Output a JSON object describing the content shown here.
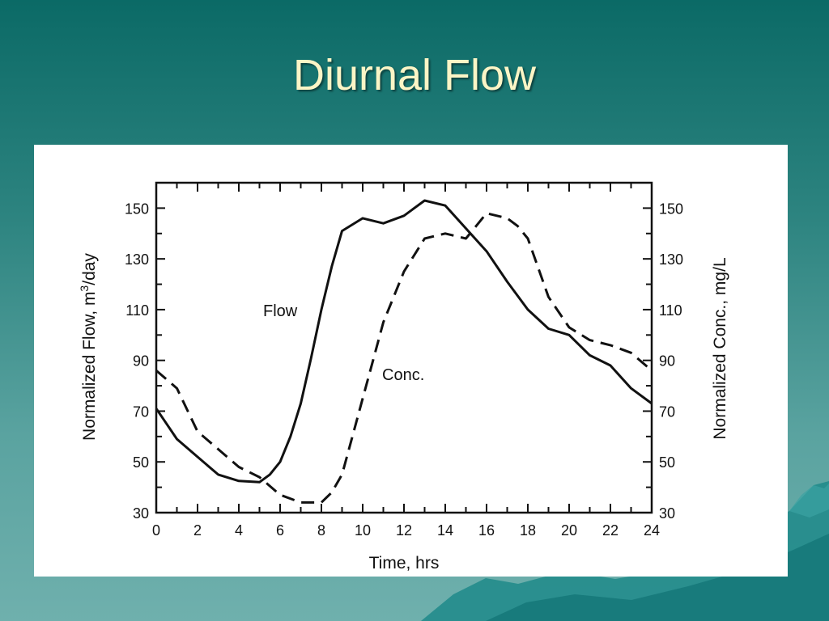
{
  "slide": {
    "title": "Diurnal Flow"
  },
  "chart_data": {
    "type": "line",
    "xlabel": "Time, hrs",
    "ylabel_left_prefix": "Normalized Flow, m",
    "ylabel_left_sup": "3",
    "ylabel_left_suffix": "/day",
    "ylabel_right": "Normalized Conc., mg/L",
    "xlim": [
      0,
      24
    ],
    "ylim": [
      30,
      160
    ],
    "x_ticks": [
      0,
      2,
      4,
      6,
      8,
      10,
      12,
      14,
      16,
      18,
      20,
      22,
      24
    ],
    "y_ticks": [
      30,
      50,
      70,
      90,
      110,
      130,
      150
    ],
    "grid": false,
    "series": [
      {
        "name": "Flow",
        "style": "solid",
        "x": [
          0,
          0.5,
          1,
          2,
          3,
          4,
          5,
          5.5,
          6,
          6.5,
          7,
          7.5,
          8,
          8.5,
          9,
          10,
          11,
          12,
          13,
          14,
          15,
          16,
          17,
          18,
          19,
          20,
          21,
          22,
          23,
          24
        ],
        "y": [
          71,
          65,
          59,
          52,
          45,
          42.5,
          42,
          45,
          50,
          60,
          73,
          91,
          110,
          127,
          141,
          146,
          144,
          147,
          153,
          151,
          142,
          133,
          121,
          110,
          102.5,
          100,
          92,
          88,
          79,
          73
        ]
      },
      {
        "name": "Conc.",
        "style": "dashed",
        "x": [
          0,
          1,
          2,
          3,
          4,
          5,
          6,
          7,
          8,
          8.5,
          9,
          9.5,
          10,
          10.5,
          11,
          12,
          13,
          14,
          15,
          16,
          17,
          17.5,
          18,
          19,
          20,
          21,
          22,
          23,
          24
        ],
        "y": [
          86,
          79,
          62,
          55,
          48,
          44,
          37,
          34,
          34,
          38,
          45,
          60,
          75,
          90,
          105,
          125,
          138,
          140,
          138,
          148,
          146,
          143,
          138,
          115,
          103,
          98,
          96,
          93,
          86
        ]
      }
    ]
  }
}
